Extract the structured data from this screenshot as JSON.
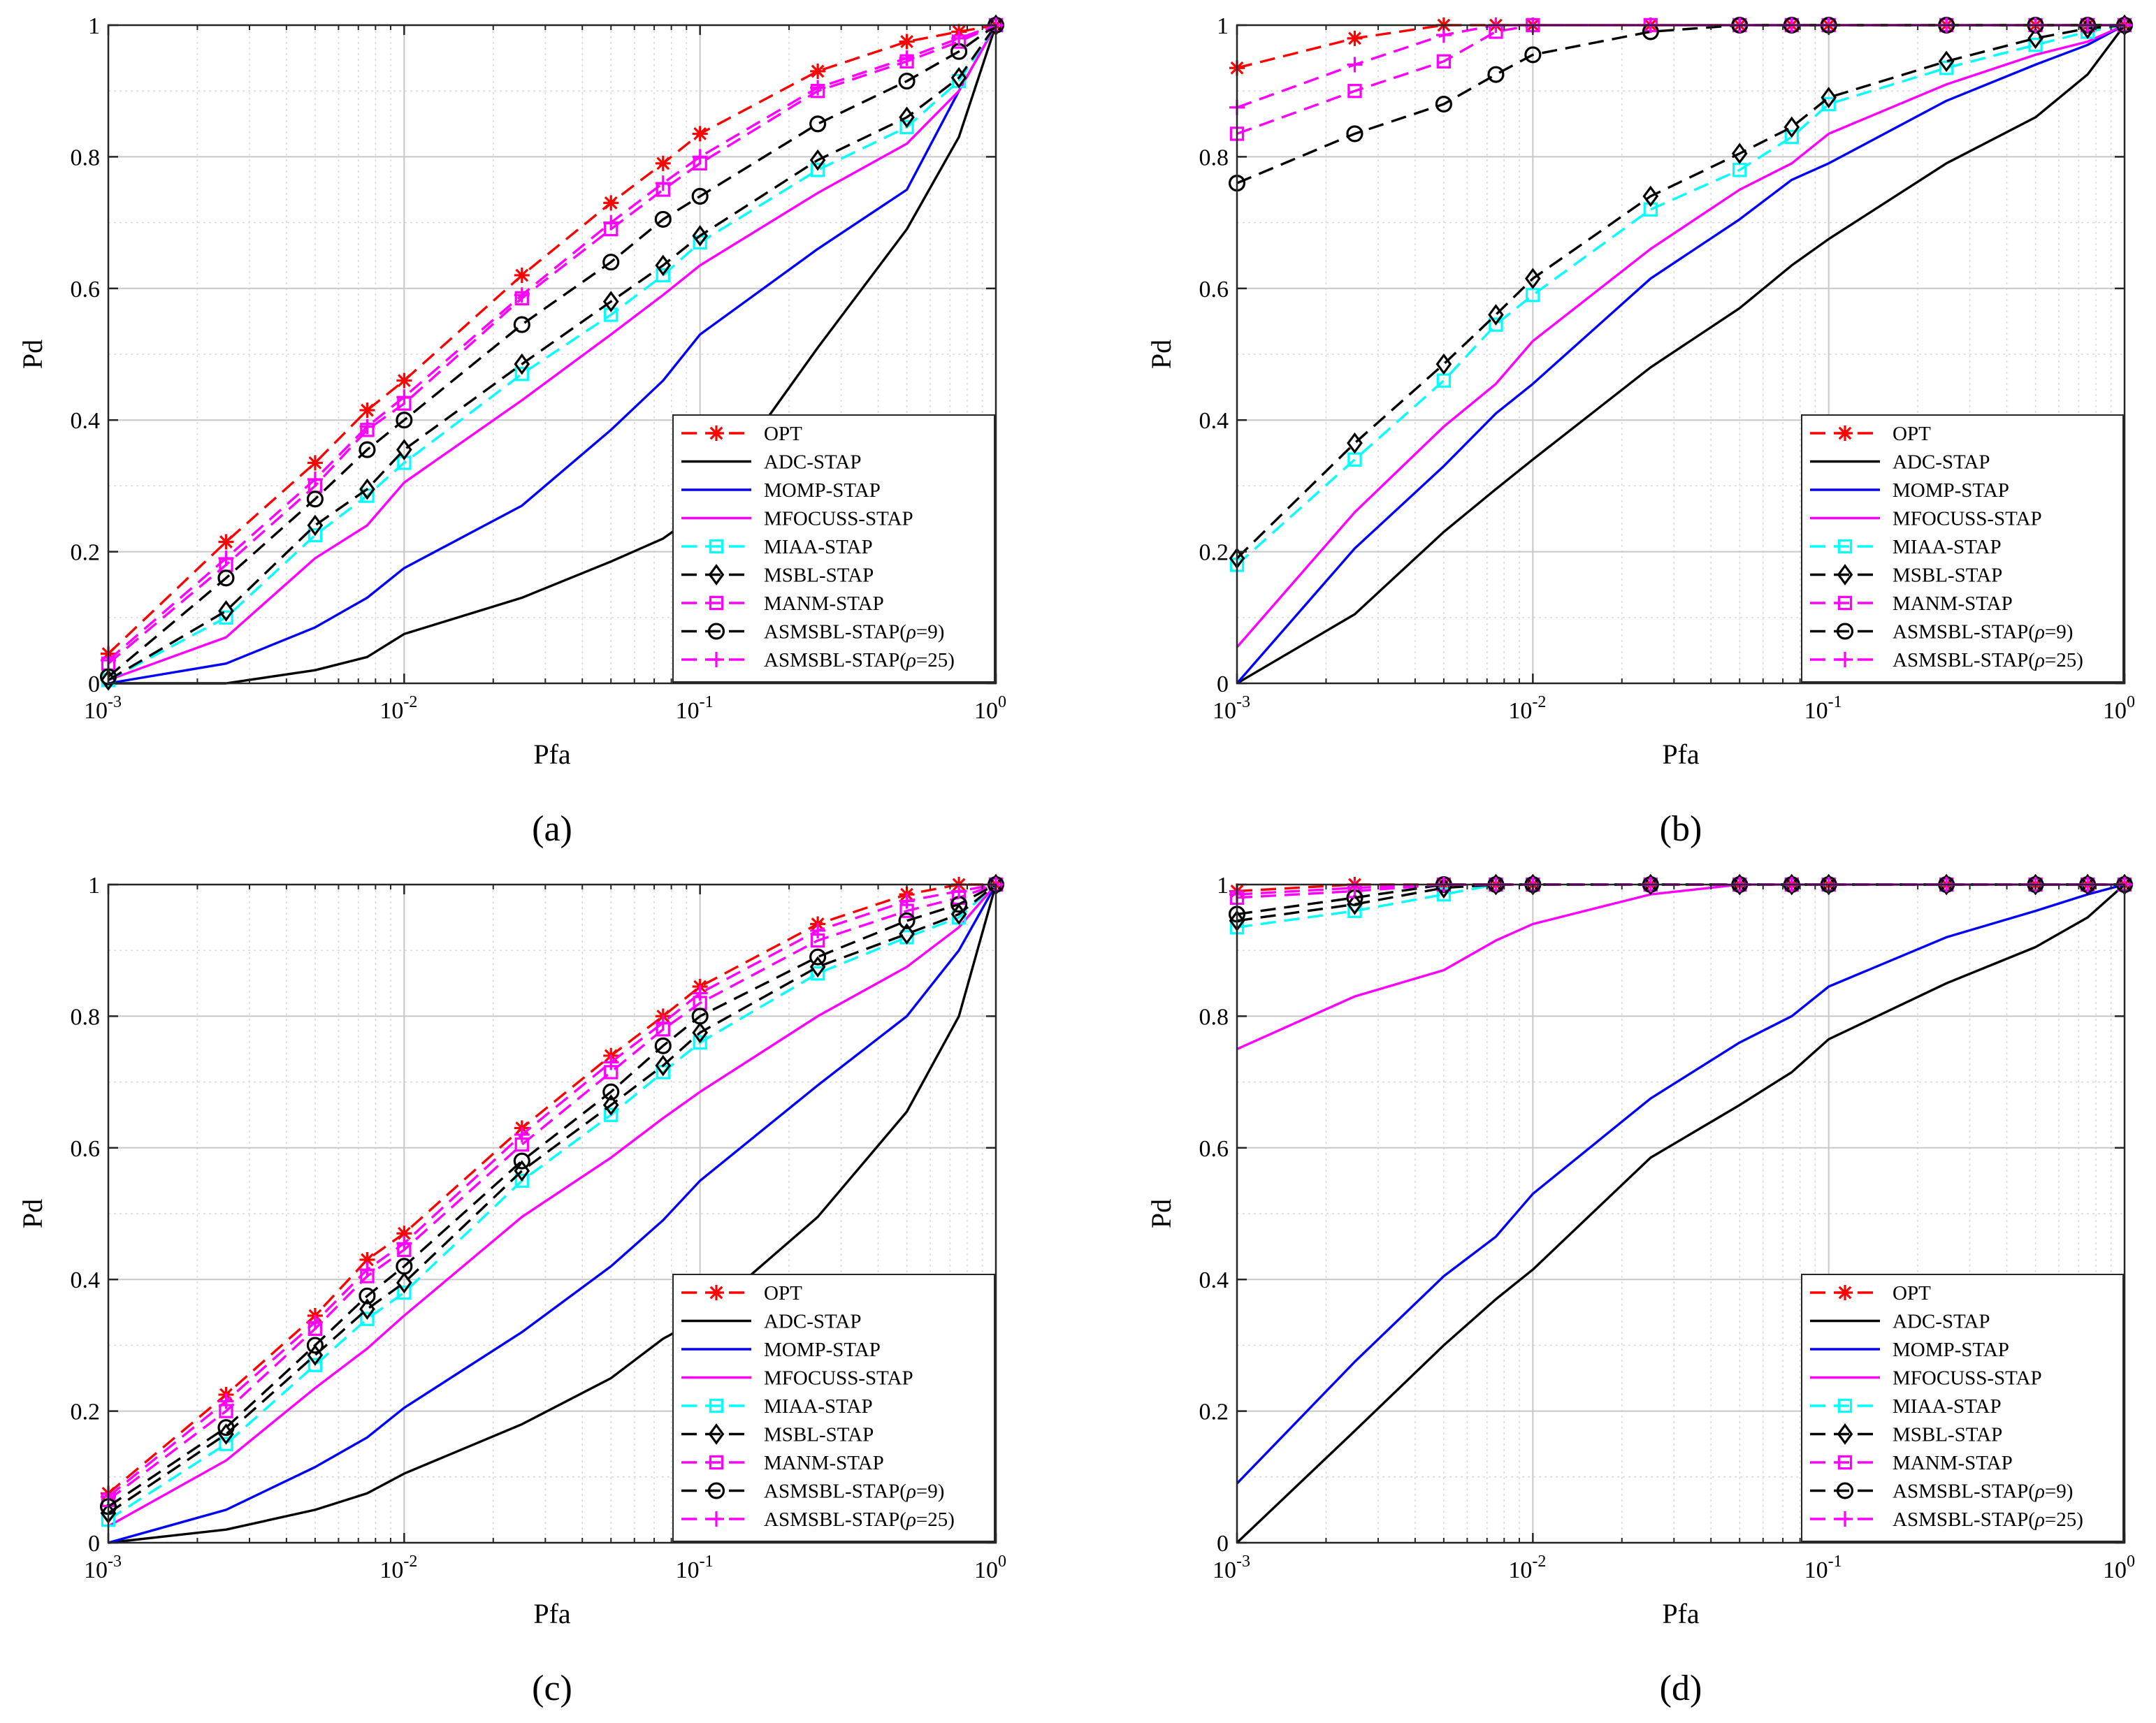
{
  "figure": {
    "captions": [
      "(a)",
      "(b)",
      "(c)",
      "(d)"
    ],
    "x_tick_labels": [
      {
        "base": "10",
        "exp": "-3"
      },
      {
        "base": "10",
        "exp": "-2"
      },
      {
        "base": "10",
        "exp": "-1"
      },
      {
        "base": "10",
        "exp": "0"
      }
    ],
    "y_tick_labels": [
      "0",
      "0.2",
      "0.4",
      "0.6",
      "0.8",
      "1"
    ]
  },
  "legend": {
    "entries": [
      "OPT",
      "ADC-STAP",
      "MOMP-STAP",
      "MFOCUSS-STAP",
      "MIAA-STAP",
      "MSBL-STAP",
      "MANM-STAP",
      "ASMSBL-STAP(",
      "ASMSBL-STAP("
    ],
    "rho_symbol": "ρ",
    "rho_values": [
      "=9)",
      "=25)"
    ]
  },
  "series_style": [
    {
      "name": "OPT",
      "color": "#ff0000",
      "dash": "dashed",
      "marker": "asterisk"
    },
    {
      "name": "ADC-STAP",
      "color": "#000000",
      "dash": "solid",
      "marker": "none"
    },
    {
      "name": "MOMP-STAP",
      "color": "#0000ff",
      "dash": "solid",
      "marker": "none"
    },
    {
      "name": "MFOCUSS-STAP",
      "color": "#ff00ff",
      "dash": "solid",
      "marker": "none"
    },
    {
      "name": "MIAA-STAP",
      "color": "#00ffff",
      "dash": "dashed",
      "marker": "square"
    },
    {
      "name": "MSBL-STAP",
      "color": "#000000",
      "dash": "dashed",
      "marker": "diamond"
    },
    {
      "name": "MANM-STAP",
      "color": "#ff00ff",
      "dash": "dashed",
      "marker": "square"
    },
    {
      "name": "ASMSBL-STAP(ρ=9)",
      "color": "#000000",
      "dash": "dashed",
      "marker": "circle"
    },
    {
      "name": "ASMSBL-STAP(ρ=25)",
      "color": "#ff00ff",
      "dash": "dashed",
      "marker": "plus"
    }
  ],
  "chart_data": [
    {
      "type": "line",
      "panel": "(a)",
      "xlabel": "Pfa",
      "ylabel": "Pd",
      "xscale": "log",
      "xlim": [
        0.001,
        1
      ],
      "ylim": [
        0,
        1
      ],
      "grid": true,
      "legend_position": "bottom-right",
      "x": [
        0.001,
        0.0025,
        0.005,
        0.0075,
        0.01,
        0.025,
        0.05,
        0.075,
        0.1,
        0.25,
        0.5,
        0.75,
        1
      ],
      "series": [
        {
          "name": "OPT",
          "values": [
            0.045,
            0.215,
            0.335,
            0.415,
            0.46,
            0.62,
            0.73,
            0.79,
            0.835,
            0.93,
            0.975,
            0.99,
            1
          ]
        },
        {
          "name": "ADC-STAP",
          "values": [
            0,
            0,
            0.02,
            0.04,
            0.075,
            0.13,
            0.185,
            0.22,
            0.26,
            0.51,
            0.69,
            0.83,
            1
          ]
        },
        {
          "name": "MOMP-STAP",
          "values": [
            0,
            0.03,
            0.085,
            0.13,
            0.175,
            0.27,
            0.385,
            0.46,
            0.53,
            0.66,
            0.75,
            0.9,
            1
          ]
        },
        {
          "name": "MFOCUSS-STAP",
          "values": [
            0.005,
            0.07,
            0.19,
            0.24,
            0.305,
            0.43,
            0.53,
            0.59,
            0.635,
            0.745,
            0.82,
            0.9,
            1
          ]
        },
        {
          "name": "MIAA-STAP",
          "values": [
            0.005,
            0.1,
            0.225,
            0.285,
            0.335,
            0.47,
            0.56,
            0.62,
            0.67,
            0.78,
            0.845,
            0.915,
            1
          ]
        },
        {
          "name": "MSBL-STAP",
          "values": [
            0.005,
            0.11,
            0.24,
            0.295,
            0.355,
            0.485,
            0.58,
            0.635,
            0.68,
            0.795,
            0.86,
            0.92,
            1
          ]
        },
        {
          "name": "MANM-STAP",
          "values": [
            0.03,
            0.18,
            0.3,
            0.385,
            0.425,
            0.585,
            0.69,
            0.75,
            0.79,
            0.9,
            0.945,
            0.975,
            1
          ]
        },
        {
          "name": "ASMSBL-STAP(ρ=9)",
          "values": [
            0.01,
            0.16,
            0.28,
            0.355,
            0.4,
            0.545,
            0.64,
            0.705,
            0.74,
            0.85,
            0.915,
            0.96,
            1
          ]
        },
        {
          "name": "ASMSBL-STAP(ρ=25)",
          "values": [
            0.035,
            0.19,
            0.31,
            0.39,
            0.435,
            0.59,
            0.7,
            0.76,
            0.8,
            0.905,
            0.95,
            0.98,
            1
          ]
        }
      ]
    },
    {
      "type": "line",
      "panel": "(b)",
      "xlabel": "Pfa",
      "ylabel": "Pd",
      "xscale": "log",
      "xlim": [
        0.001,
        1
      ],
      "ylim": [
        0,
        1
      ],
      "grid": true,
      "legend_position": "bottom-right",
      "x": [
        0.001,
        0.0025,
        0.005,
        0.0075,
        0.01,
        0.025,
        0.05,
        0.075,
        0.1,
        0.25,
        0.5,
        0.75,
        1
      ],
      "series": [
        {
          "name": "OPT",
          "values": [
            0.935,
            0.98,
            1,
            1,
            1,
            1,
            1,
            1,
            1,
            1,
            1,
            1,
            1
          ]
        },
        {
          "name": "ADC-STAP",
          "values": [
            0,
            0.105,
            0.23,
            0.295,
            0.34,
            0.48,
            0.57,
            0.635,
            0.675,
            0.79,
            0.86,
            0.925,
            1
          ]
        },
        {
          "name": "MOMP-STAP",
          "values": [
            0,
            0.205,
            0.33,
            0.41,
            0.455,
            0.615,
            0.705,
            0.765,
            0.79,
            0.885,
            0.94,
            0.97,
            1
          ]
        },
        {
          "name": "MFOCUSS-STAP",
          "values": [
            0.055,
            0.26,
            0.39,
            0.455,
            0.52,
            0.66,
            0.75,
            0.79,
            0.835,
            0.91,
            0.955,
            0.975,
            1
          ]
        },
        {
          "name": "MIAA-STAP",
          "values": [
            0.18,
            0.34,
            0.46,
            0.545,
            0.59,
            0.72,
            0.78,
            0.83,
            0.88,
            0.935,
            0.97,
            0.99,
            1
          ]
        },
        {
          "name": "MSBL-STAP",
          "values": [
            0.19,
            0.365,
            0.485,
            0.56,
            0.615,
            0.74,
            0.805,
            0.845,
            0.89,
            0.945,
            0.98,
            0.995,
            1
          ]
        },
        {
          "name": "MANM-STAP",
          "values": [
            0.835,
            0.9,
            0.945,
            0.99,
            1,
            1,
            1,
            1,
            1,
            1,
            1,
            1,
            1
          ]
        },
        {
          "name": "ASMSBL-STAP(ρ=9)",
          "values": [
            0.76,
            0.835,
            0.88,
            0.925,
            0.955,
            0.99,
            1,
            1,
            1,
            1,
            1,
            1,
            1
          ]
        },
        {
          "name": "ASMSBL-STAP(ρ=25)",
          "values": [
            0.875,
            0.94,
            0.985,
            1,
            1,
            1,
            1,
            1,
            1,
            1,
            1,
            1,
            1
          ]
        }
      ]
    },
    {
      "type": "line",
      "panel": "(c)",
      "xlabel": "Pfa",
      "ylabel": "Pd",
      "xscale": "log",
      "xlim": [
        0.001,
        1
      ],
      "ylim": [
        0,
        1
      ],
      "grid": true,
      "legend_position": "bottom-right",
      "x": [
        0.001,
        0.0025,
        0.005,
        0.0075,
        0.01,
        0.025,
        0.05,
        0.075,
        0.1,
        0.25,
        0.5,
        0.75,
        1
      ],
      "series": [
        {
          "name": "OPT",
          "values": [
            0.075,
            0.225,
            0.345,
            0.43,
            0.47,
            0.63,
            0.74,
            0.8,
            0.845,
            0.94,
            0.985,
            1,
            1
          ]
        },
        {
          "name": "ADC-STAP",
          "values": [
            0,
            0.02,
            0.05,
            0.075,
            0.105,
            0.18,
            0.25,
            0.31,
            0.34,
            0.495,
            0.655,
            0.8,
            1
          ]
        },
        {
          "name": "MOMP-STAP",
          "values": [
            0,
            0.05,
            0.115,
            0.16,
            0.205,
            0.32,
            0.42,
            0.49,
            0.55,
            0.695,
            0.8,
            0.9,
            1
          ]
        },
        {
          "name": "MFOCUSS-STAP",
          "values": [
            0.025,
            0.125,
            0.235,
            0.295,
            0.345,
            0.495,
            0.585,
            0.645,
            0.685,
            0.8,
            0.875,
            0.935,
            1
          ]
        },
        {
          "name": "MIAA-STAP",
          "values": [
            0.035,
            0.15,
            0.27,
            0.34,
            0.38,
            0.55,
            0.65,
            0.715,
            0.76,
            0.865,
            0.92,
            0.95,
            1
          ]
        },
        {
          "name": "MSBL-STAP",
          "values": [
            0.045,
            0.165,
            0.285,
            0.355,
            0.395,
            0.565,
            0.665,
            0.725,
            0.775,
            0.875,
            0.925,
            0.955,
            1
          ]
        },
        {
          "name": "MANM-STAP",
          "values": [
            0.065,
            0.2,
            0.325,
            0.405,
            0.445,
            0.605,
            0.715,
            0.78,
            0.82,
            0.915,
            0.96,
            0.98,
            1
          ]
        },
        {
          "name": "ASMSBL-STAP(ρ=9)",
          "values": [
            0.055,
            0.175,
            0.3,
            0.375,
            0.42,
            0.58,
            0.685,
            0.755,
            0.8,
            0.89,
            0.945,
            0.97,
            1
          ]
        },
        {
          "name": "ASMSBL-STAP(ρ=25)",
          "values": [
            0.07,
            0.215,
            0.335,
            0.415,
            0.455,
            0.62,
            0.73,
            0.79,
            0.835,
            0.93,
            0.975,
            0.99,
            1
          ]
        }
      ]
    },
    {
      "type": "line",
      "panel": "(d)",
      "xlabel": "Pfa",
      "ylabel": "Pd",
      "xscale": "log",
      "xlim": [
        0.001,
        1
      ],
      "ylim": [
        0,
        1
      ],
      "grid": true,
      "legend_position": "bottom-right",
      "x": [
        0.001,
        0.0025,
        0.005,
        0.0075,
        0.01,
        0.025,
        0.05,
        0.075,
        0.1,
        0.25,
        0.5,
        0.75,
        1
      ],
      "series": [
        {
          "name": "OPT",
          "values": [
            0.99,
            1,
            1,
            1,
            1,
            1,
            1,
            1,
            1,
            1,
            1,
            1,
            1
          ]
        },
        {
          "name": "ADC-STAP",
          "values": [
            0,
            0.17,
            0.3,
            0.37,
            0.415,
            0.585,
            0.665,
            0.715,
            0.765,
            0.85,
            0.905,
            0.95,
            1
          ]
        },
        {
          "name": "MOMP-STAP",
          "values": [
            0.09,
            0.275,
            0.405,
            0.465,
            0.53,
            0.675,
            0.76,
            0.8,
            0.845,
            0.92,
            0.96,
            0.985,
            1
          ]
        },
        {
          "name": "MFOCUSS-STAP",
          "values": [
            0.75,
            0.83,
            0.87,
            0.915,
            0.94,
            0.985,
            1,
            1,
            1,
            1,
            1,
            1,
            1
          ]
        },
        {
          "name": "MIAA-STAP",
          "values": [
            0.935,
            0.96,
            0.985,
            1,
            1,
            1,
            1,
            1,
            1,
            1,
            1,
            1,
            1
          ]
        },
        {
          "name": "MSBL-STAP",
          "values": [
            0.945,
            0.97,
            0.995,
            1,
            1,
            1,
            1,
            1,
            1,
            1,
            1,
            1,
            1
          ]
        },
        {
          "name": "MANM-STAP",
          "values": [
            0.98,
            0.99,
            1,
            1,
            1,
            1,
            1,
            1,
            1,
            1,
            1,
            1,
            1
          ]
        },
        {
          "name": "ASMSBL-STAP(ρ=9)",
          "values": [
            0.955,
            0.98,
            1,
            1,
            1,
            1,
            1,
            1,
            1,
            1,
            1,
            1,
            1
          ]
        },
        {
          "name": "ASMSBL-STAP(ρ=25)",
          "values": [
            0.985,
            0.995,
            1,
            1,
            1,
            1,
            1,
            1,
            1,
            1,
            1,
            1,
            1
          ]
        }
      ]
    }
  ]
}
